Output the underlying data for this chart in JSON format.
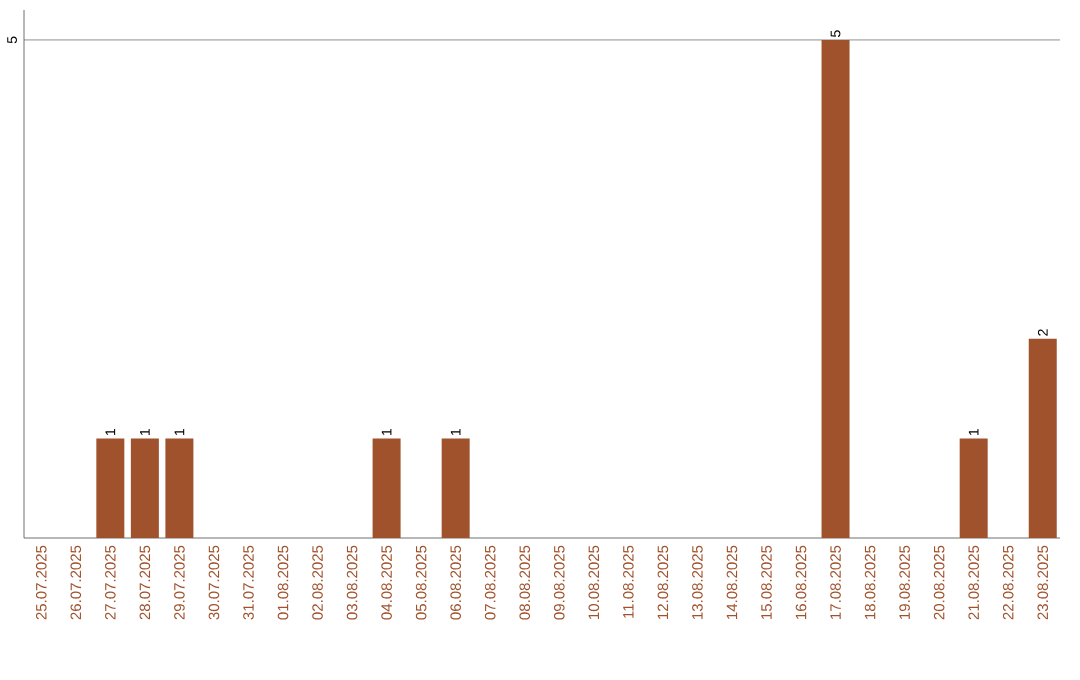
{
  "chart_data": {
    "type": "bar",
    "categories": [
      "25.07.2025",
      "26.07.2025",
      "27.07.2025",
      "28.07.2025",
      "29.07.2025",
      "30.07.2025",
      "31.07.2025",
      "01.08.2025",
      "02.08.2025",
      "03.08.2025",
      "04.08.2025",
      "05.08.2025",
      "06.08.2025",
      "07.08.2025",
      "08.08.2025",
      "09.08.2025",
      "10.08.2025",
      "11.08.2025",
      "12.08.2025",
      "13.08.2025",
      "14.08.2025",
      "15.08.2025",
      "16.08.2025",
      "17.08.2025",
      "18.08.2025",
      "19.08.2025",
      "20.08.2025",
      "21.08.2025",
      "22.08.2025",
      "23.08.2025"
    ],
    "values": [
      0,
      0,
      1,
      1,
      1,
      0,
      0,
      0,
      0,
      0,
      1,
      0,
      1,
      0,
      0,
      0,
      0,
      0,
      0,
      0,
      0,
      0,
      0,
      5,
      0,
      0,
      0,
      1,
      0,
      2
    ],
    "value_labels": [
      null,
      null,
      "1",
      "1",
      "1",
      null,
      null,
      null,
      null,
      null,
      "1",
      null,
      "1",
      null,
      null,
      null,
      null,
      null,
      null,
      null,
      null,
      null,
      null,
      "5",
      null,
      null,
      null,
      "1",
      null,
      "2"
    ],
    "color": "#a0522d",
    "ylim": [
      0,
      5.3
    ],
    "yticks": [
      5
    ],
    "grid": "y"
  }
}
